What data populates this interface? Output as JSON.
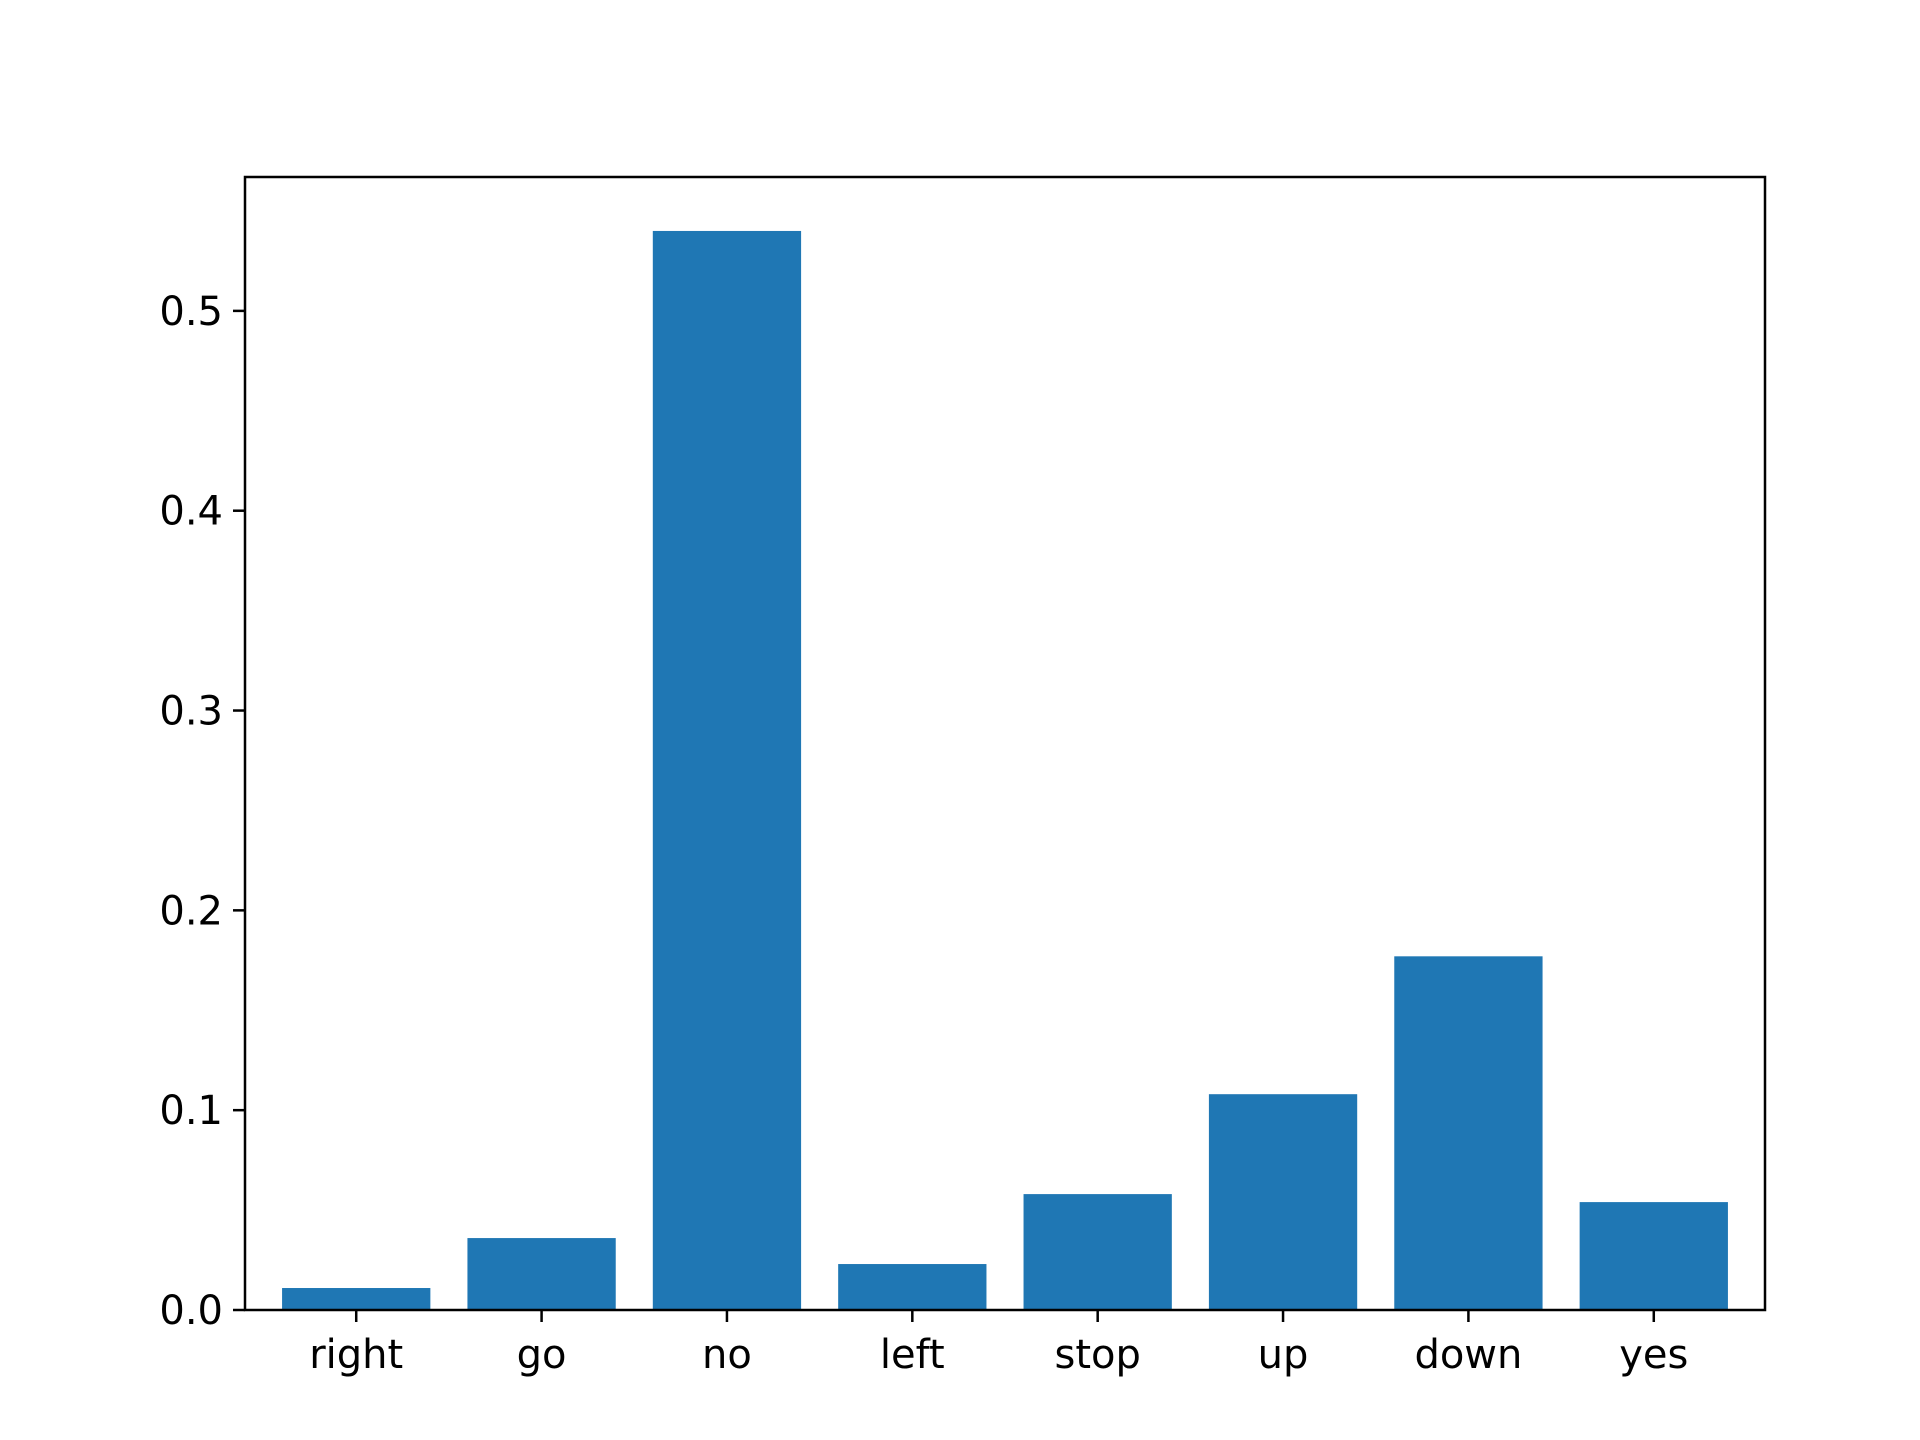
{
  "chart_data": {
    "type": "bar",
    "title": "",
    "xlabel": "",
    "ylabel": "",
    "categories": [
      "right",
      "go",
      "no",
      "left",
      "stop",
      "up",
      "down",
      "yes"
    ],
    "values": [
      0.011,
      0.036,
      0.54,
      0.023,
      0.058,
      0.108,
      0.177,
      0.054
    ],
    "ylim": [
      0,
      0.567
    ],
    "yticks": [
      0.0,
      0.1,
      0.2,
      0.3,
      0.4,
      0.5
    ],
    "ytick_labels": [
      "0.0",
      "0.1",
      "0.2",
      "0.3",
      "0.4",
      "0.5"
    ],
    "bar_color": "#1f77b4",
    "grid": false,
    "legend": "none"
  }
}
